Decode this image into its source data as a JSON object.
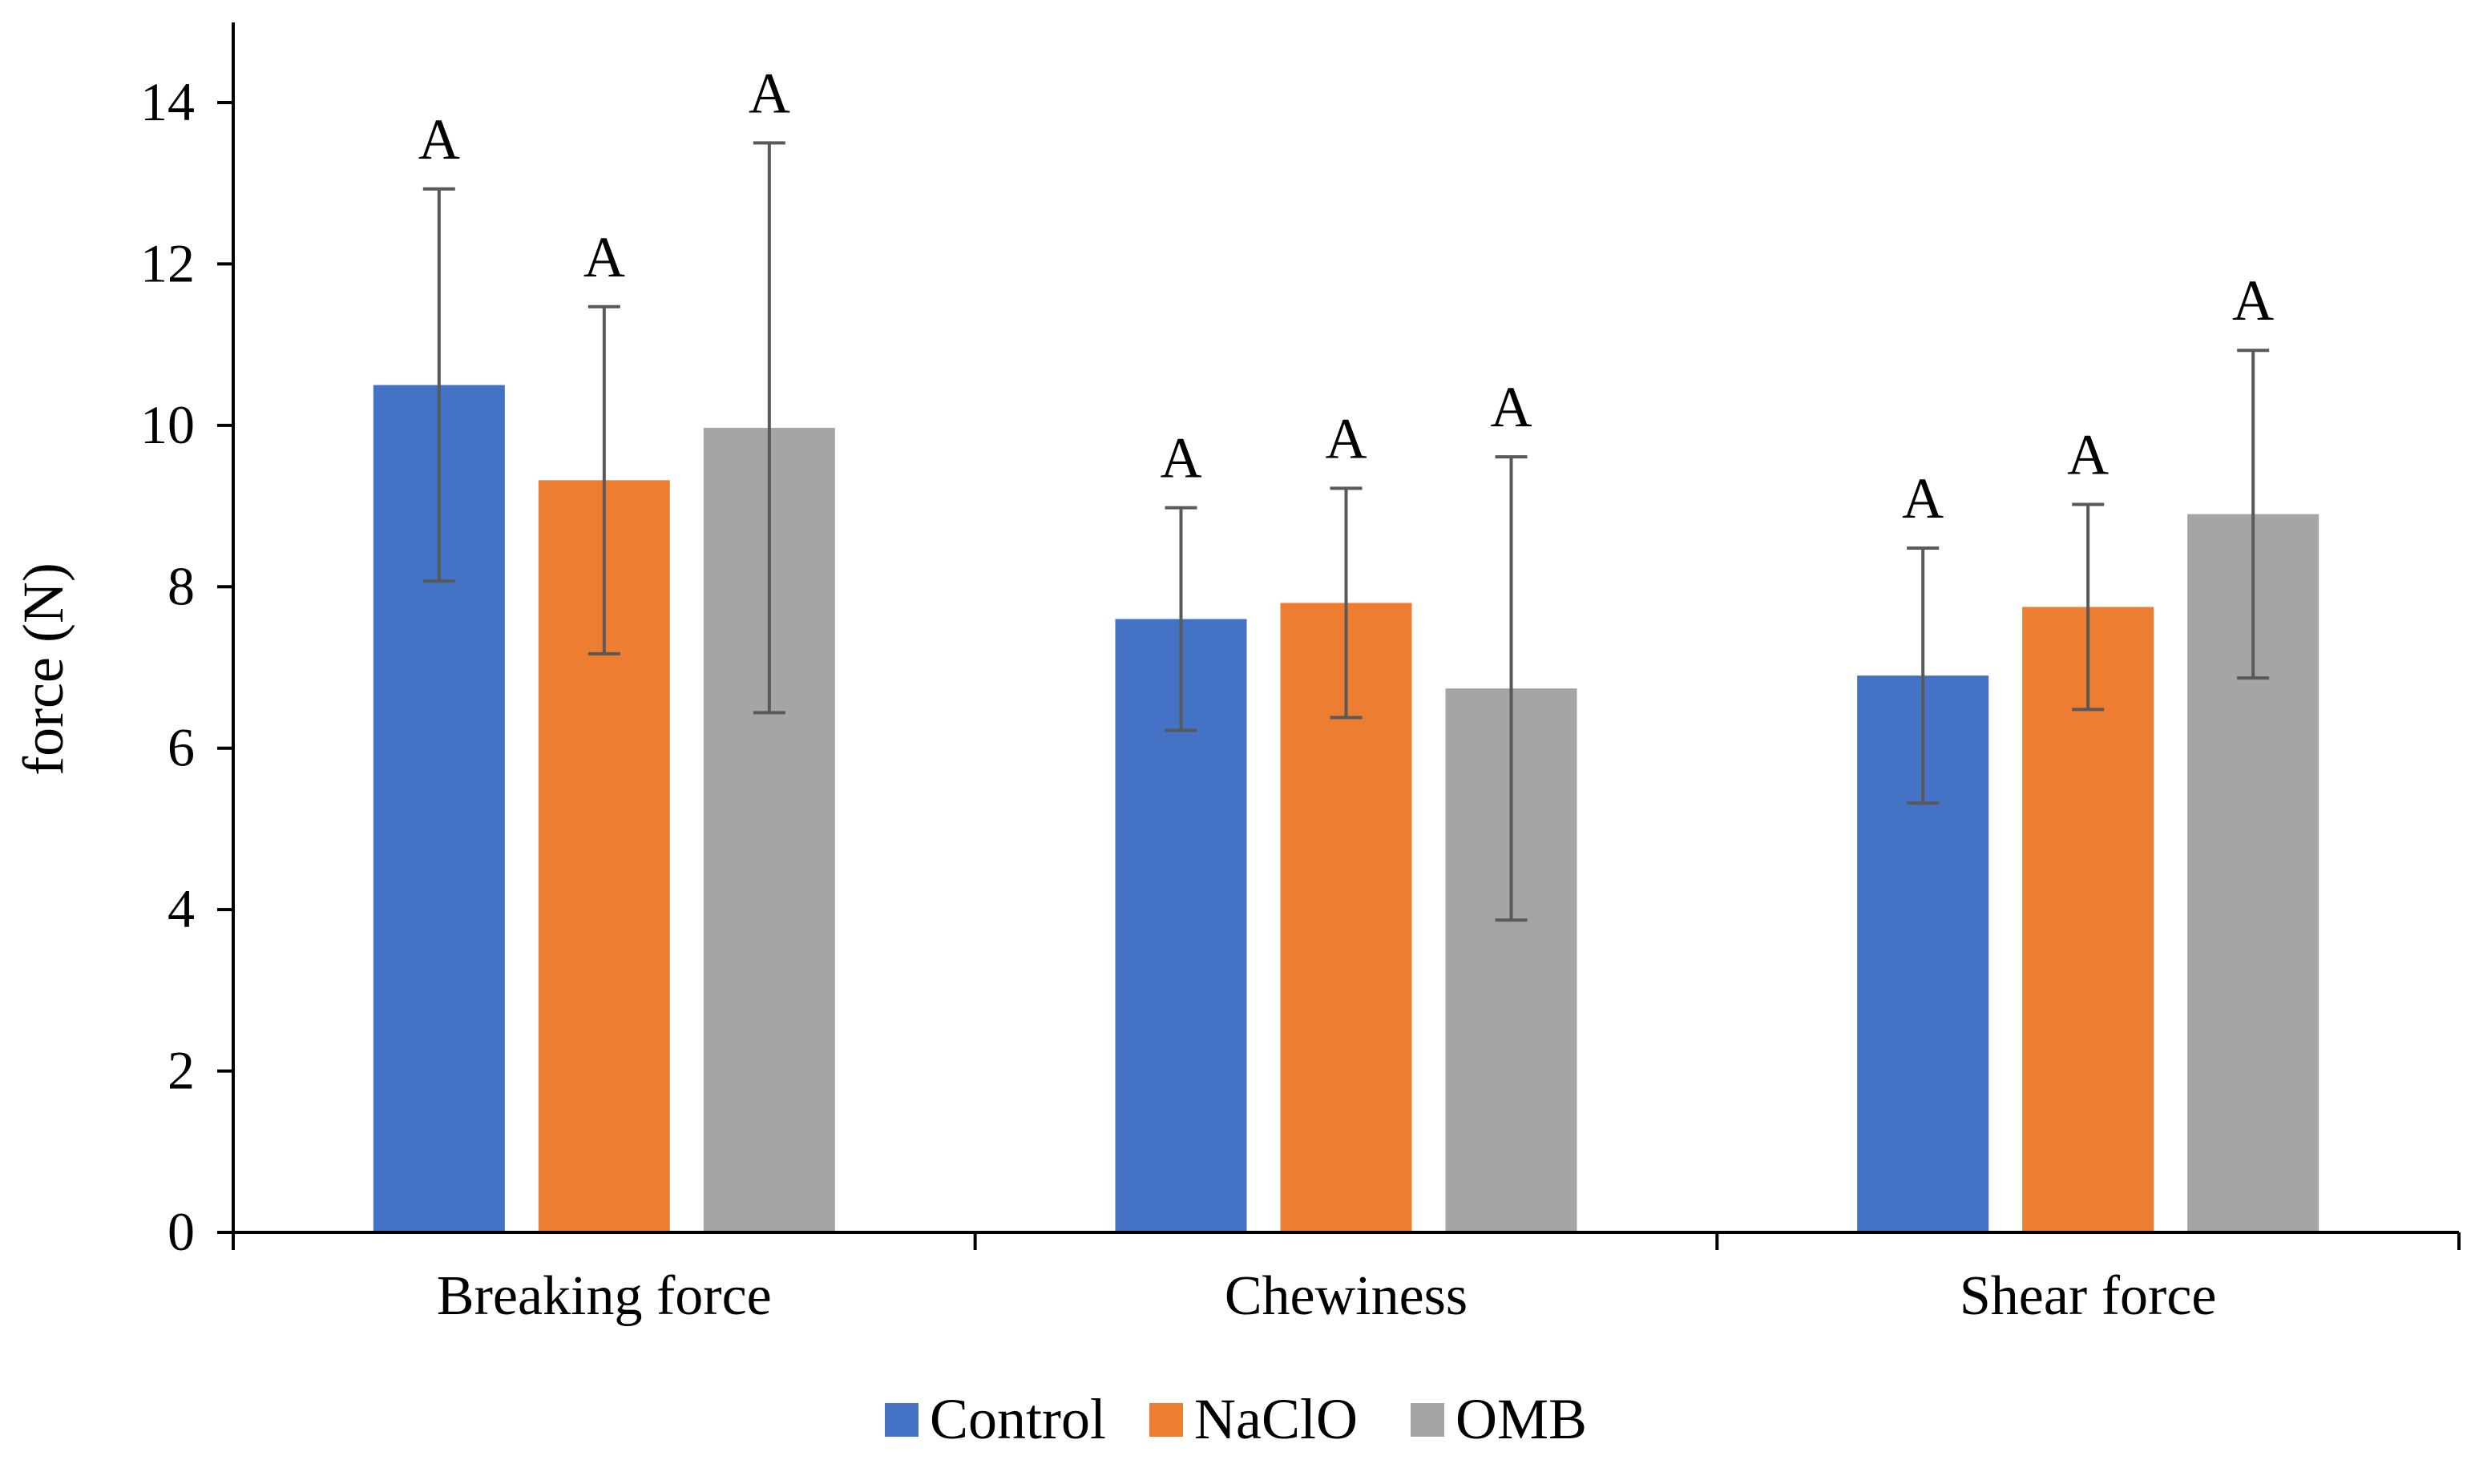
{
  "chart_data": {
    "type": "bar",
    "title": "",
    "xlabel": "",
    "ylabel": "force (N)",
    "ylim": [
      0,
      14
    ],
    "yticks": [
      0,
      2,
      4,
      6,
      8,
      10,
      12,
      14
    ],
    "grid": false,
    "legend_position": "bottom",
    "categories": [
      "Breaking force",
      "Chewiness",
      "Shear force"
    ],
    "series": [
      {
        "name": "Control",
        "color": "#4472C4",
        "values": [
          10.5,
          7.6,
          6.9
        ],
        "errors": [
          2.43,
          1.38,
          1.58
        ],
        "labels": [
          "A",
          "A",
          "A"
        ]
      },
      {
        "name": "NaClO",
        "color": "#ED7D31",
        "values": [
          9.32,
          7.8,
          7.75
        ],
        "errors": [
          2.15,
          1.42,
          1.27
        ],
        "labels": [
          "A",
          "A",
          "A"
        ]
      },
      {
        "name": "OMB",
        "color": "#A5A5A5",
        "values": [
          9.97,
          6.74,
          8.9
        ],
        "errors": [
          3.53,
          2.87,
          2.03
        ],
        "labels": [
          "A",
          "A",
          "A"
        ]
      }
    ]
  }
}
